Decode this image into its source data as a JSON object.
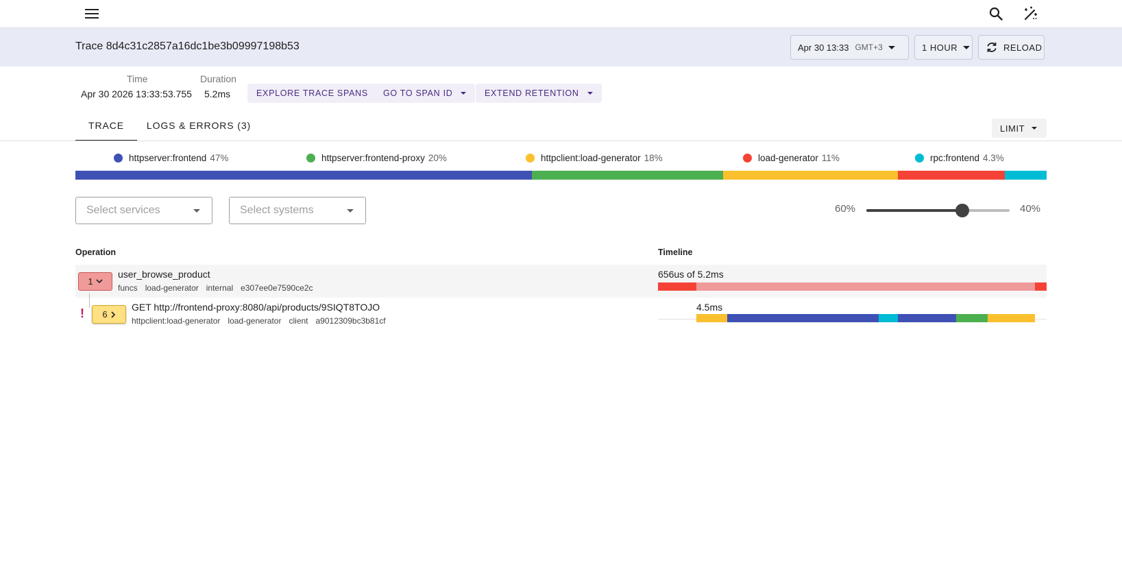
{
  "topbar": {
    "menu_icon": "menu-icon",
    "search_icon": "search-icon",
    "theme_icon": "theme-toggle-icon"
  },
  "header": {
    "title": "Trace 8d4c31c2857a16dc1be3b09997198b53",
    "date": "Apr 30 13:33",
    "timezone": "GMT+3",
    "range": "1 HOUR",
    "reload": "RELOAD"
  },
  "meta": {
    "time_label": "Time",
    "time_value": "Apr 30 2026 13:33:53.755",
    "duration_label": "Duration",
    "duration_value": "5.2ms",
    "explore": "EXPLORE TRACE SPANS",
    "go_to_span": "GO TO SPAN ID",
    "extend": "EXTEND RETENTION"
  },
  "tabs": [
    {
      "label": "TRACE",
      "active": true
    },
    {
      "label": "LOGS & ERRORS (3)",
      "active": false
    }
  ],
  "limit": "LIMIT",
  "services": [
    {
      "name": "httpserver:frontend",
      "pct": "47%",
      "color": "#3f51b5",
      "share": 47
    },
    {
      "name": "httpserver:frontend-proxy",
      "pct": "20%",
      "color": "#4caf50",
      "share": 19.7
    },
    {
      "name": "httpclient:load-generator",
      "pct": "18%",
      "color": "#fbc02d",
      "share": 18
    },
    {
      "name": "load-generator",
      "pct": "11%",
      "color": "#f44336",
      "share": 11
    },
    {
      "name": "rpc:frontend",
      "pct": "4.3%",
      "color": "#00bcd4",
      "share": 4.3
    }
  ],
  "filters": {
    "services_placeholder": "Select services",
    "systems_placeholder": "Select systems"
  },
  "split": {
    "left": "60%",
    "right": "40%",
    "value": 0.67
  },
  "columns": {
    "operation": "Operation",
    "timeline": "Timeline"
  },
  "spans": [
    {
      "count": "1",
      "name": "user_browse_product",
      "tags": [
        "funcs",
        "load-generator",
        "internal",
        "e307ee0e7590ce2c"
      ],
      "timeline_label": "656us of 5.2ms"
    },
    {
      "count": "6",
      "name": "GET http://frontend-proxy:8080/api/products/9SIQT8TOJO",
      "tags": [
        "httpclient:load-generator",
        "load-generator",
        "client",
        "a9012309bc3b81cf"
      ],
      "timeline_label": "4.5ms"
    }
  ]
}
